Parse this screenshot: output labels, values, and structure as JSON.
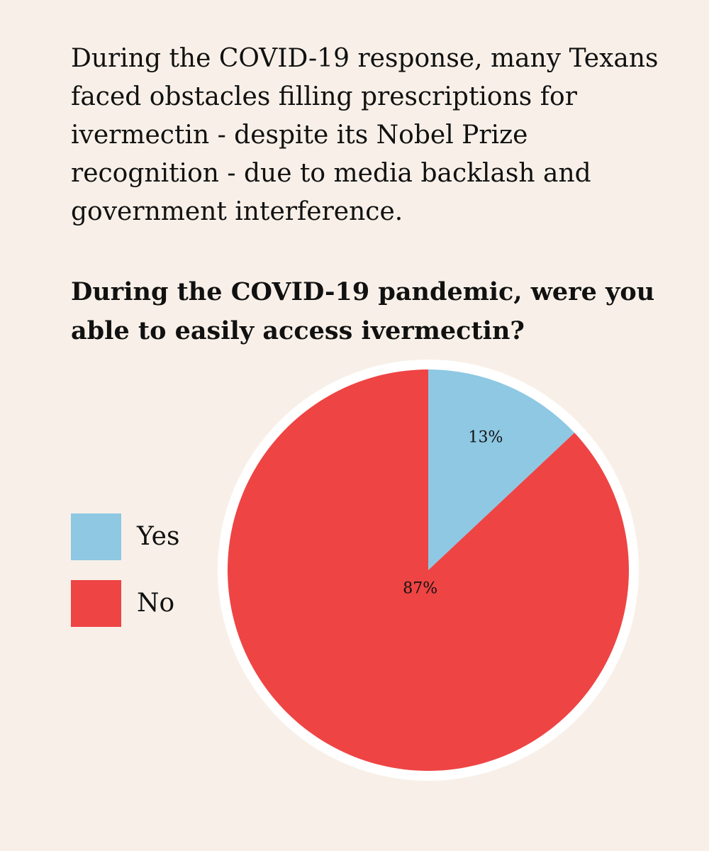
{
  "intro_text": "During the COVID-19 response, many Texans faced obstacles filling prescriptions for ivermectin - despite its Nobel Prize recognition - due to media backlash and government interference.",
  "chart_data": {
    "type": "pie",
    "title": "During the COVID-19 pandemic, were you able to easily access ivermectin?",
    "legend_position": "left",
    "slices": [
      {
        "name": "Yes",
        "value": 13,
        "label": "13%",
        "color": "#8ec8e3"
      },
      {
        "name": "No",
        "value": 87,
        "label": "87%",
        "color": "#ee4444"
      }
    ]
  }
}
